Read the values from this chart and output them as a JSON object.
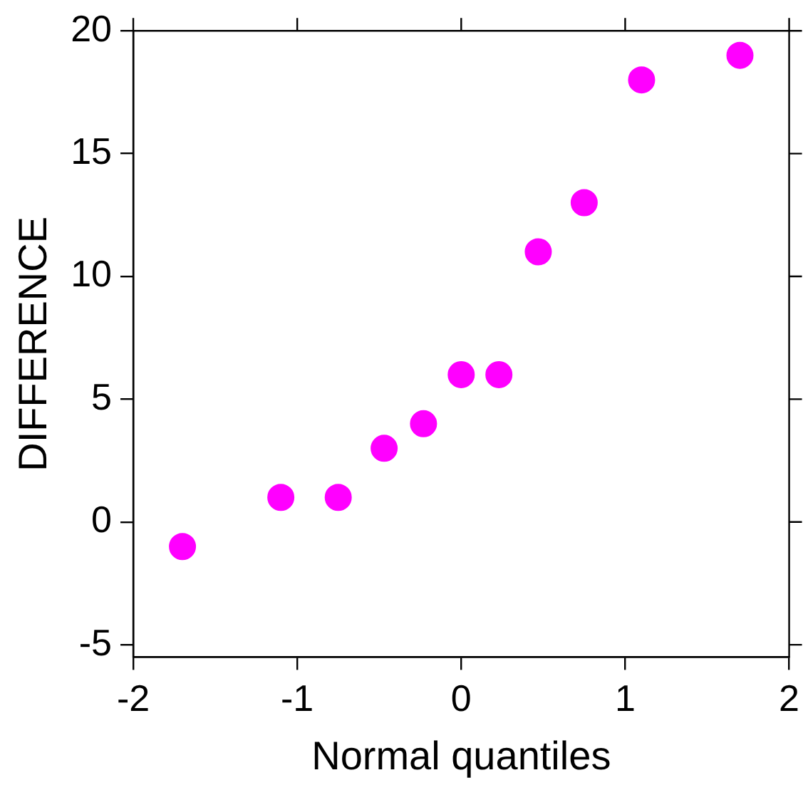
{
  "chart_data": {
    "type": "scatter",
    "xlabel": "Normal quantiles",
    "ylabel": "DIFFERENCE",
    "x": [
      -1.7,
      -1.1,
      -0.75,
      -0.47,
      -0.23,
      0,
      0.23,
      0.47,
      0.75,
      1.1,
      1.7
    ],
    "series": [
      {
        "color": "#ff00ff",
        "values": [
          -1,
          1,
          1,
          3,
          4,
          6,
          6,
          11,
          13,
          18,
          19
        ]
      }
    ],
    "xlim": [
      -2,
      2
    ],
    "xticks": [
      -2,
      -1,
      0,
      1,
      2
    ],
    "ylim": [
      -5.5,
      20
    ],
    "yticks": [
      -5,
      0,
      5,
      10,
      15,
      20
    ],
    "grid": false,
    "legend": false,
    "marker": "circle"
  }
}
